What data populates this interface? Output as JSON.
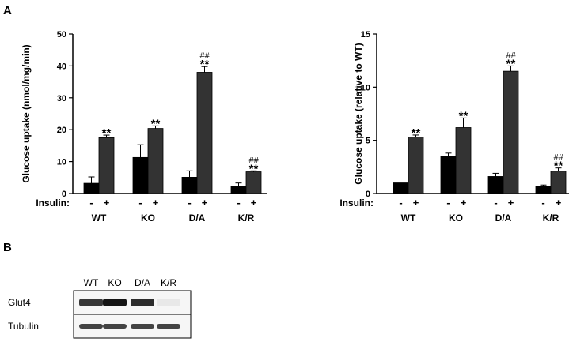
{
  "panel_labels": {
    "a": "A",
    "b": "B"
  },
  "chart_data": [
    {
      "type": "bar",
      "ylabel": "Glucose uptake (nmol/mg/min)",
      "ylim": [
        0,
        50
      ],
      "yticks": [
        0,
        10,
        20,
        30,
        40,
        50
      ],
      "categories": [
        "WT",
        "KO",
        "D/A",
        "K/R"
      ],
      "row_label": "Insulin:",
      "condition_labels": [
        "-",
        "+"
      ],
      "series": [
        {
          "values": [
            3.2,
            11.3,
            5.1,
            2.3
          ],
          "errors": [
            2.0,
            4.0,
            2.0,
            1.0
          ],
          "color": "#000000"
        },
        {
          "values": [
            17.5,
            20.4,
            38.0,
            6.8
          ],
          "errors": [
            0.8,
            0.8,
            1.8,
            0.3
          ],
          "color": "#333333"
        }
      ],
      "annotations": [
        {
          "category": "WT",
          "text": "**"
        },
        {
          "category": "KO",
          "text": "**"
        },
        {
          "category": "D/A",
          "text": "**",
          "extra": "##"
        },
        {
          "category": "K/R",
          "text": "**",
          "extra": "##"
        }
      ]
    },
    {
      "type": "bar",
      "ylabel": "Glucose uptake (relative to WT)",
      "ylim": [
        0,
        15
      ],
      "yticks": [
        0,
        5,
        10,
        15
      ],
      "categories": [
        "WT",
        "KO",
        "D/A",
        "K/R"
      ],
      "row_label": "Insulin:",
      "condition_labels": [
        "-",
        "+"
      ],
      "series": [
        {
          "values": [
            1.0,
            3.5,
            1.6,
            0.7
          ],
          "errors": [
            0.0,
            0.3,
            0.3,
            0.1
          ],
          "color": "#000000"
        },
        {
          "values": [
            5.3,
            6.2,
            11.5,
            2.1
          ],
          "errors": [
            0.2,
            0.9,
            0.5,
            0.3
          ],
          "color": "#333333"
        }
      ],
      "annotations": [
        {
          "category": "WT",
          "text": "**"
        },
        {
          "category": "KO",
          "text": "**"
        },
        {
          "category": "D/A",
          "text": "**",
          "extra": "##"
        },
        {
          "category": "K/R",
          "text": "**",
          "extra": "##"
        }
      ]
    }
  ],
  "blot": {
    "lanes": [
      "WT",
      "KO",
      "D/A",
      "K/R"
    ],
    "rows": [
      {
        "label": "Glut4",
        "intensities": [
          0.85,
          1.0,
          0.9,
          0.1
        ]
      },
      {
        "label": "Tubulin",
        "intensities": [
          0.8,
          0.8,
          0.8,
          0.8
        ]
      }
    ]
  }
}
